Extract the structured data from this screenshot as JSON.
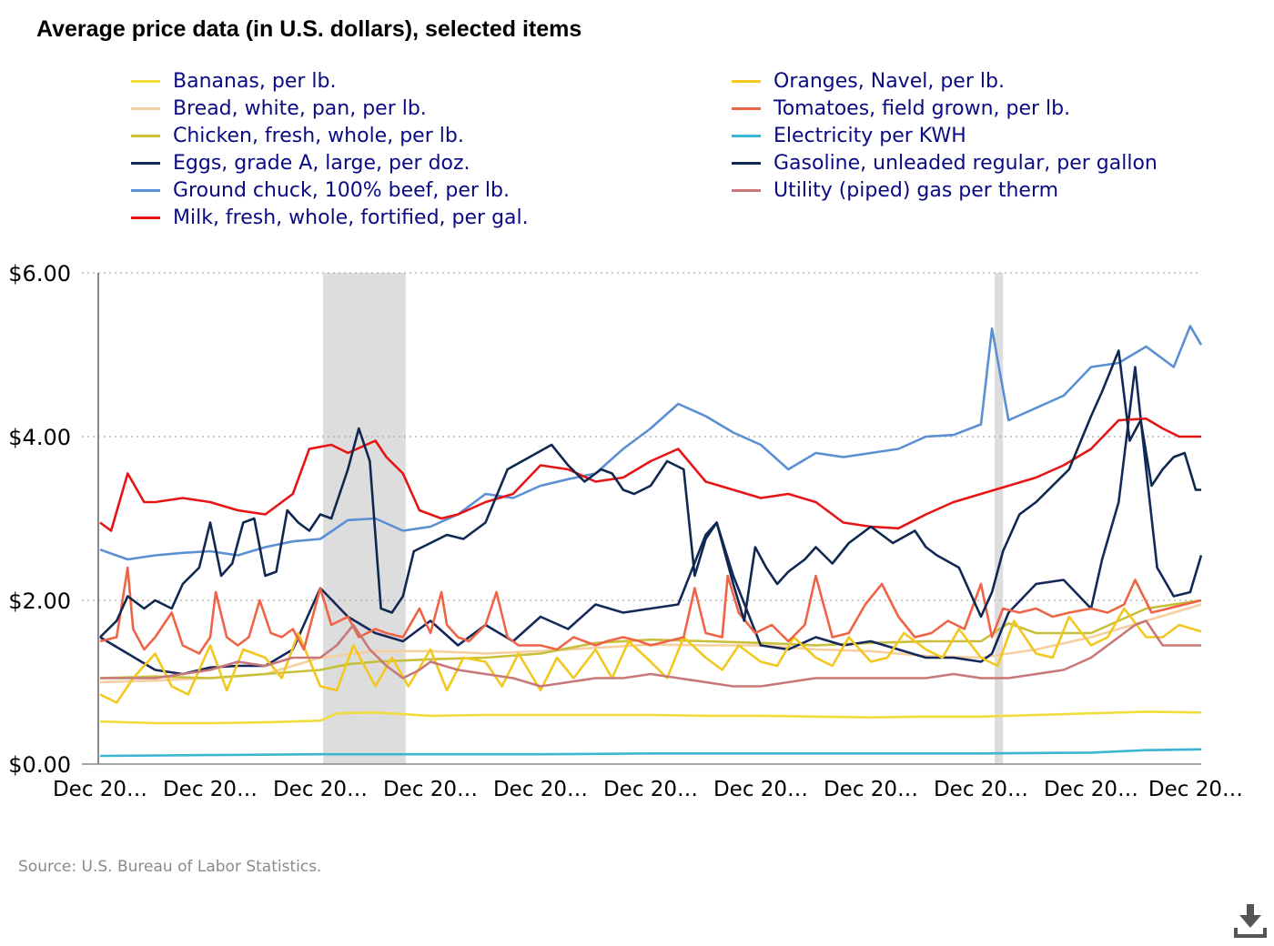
{
  "title": "Average price data (in U.S. dollars), selected items",
  "source": "Source: U.S. Bureau of Labor Statistics.",
  "download_icon": "download-icon",
  "chart_data": {
    "type": "line",
    "ylim": [
      0,
      6
    ],
    "yticks": [
      0,
      2,
      4,
      6
    ],
    "ytick_labels": [
      "$0.00",
      "$2.00",
      "$4.00",
      "$6.00"
    ],
    "xlim": [
      0,
      200
    ],
    "xticks": [
      0,
      20,
      40,
      60,
      80,
      100,
      120,
      140,
      160,
      180,
      200
    ],
    "xtick_labels": [
      "Dec 20…",
      "Dec 20…",
      "Dec 20…",
      "Dec 20…",
      "Dec 20…",
      "Dec 20…",
      "Dec 20…",
      "Dec 20…",
      "Dec 20…",
      "Dec 20…",
      "Dec 20…"
    ],
    "grid": "horizontal dotted",
    "recession_bands": [
      [
        40.5,
        55.5
      ],
      [
        162.5,
        164
      ]
    ],
    "legend_position": "top",
    "series": [
      {
        "name": "Bananas, per lb.",
        "color": "#f2dc3c",
        "x": [
          0,
          10,
          20,
          30,
          40,
          43,
          50,
          60,
          70,
          80,
          90,
          100,
          110,
          120,
          130,
          140,
          150,
          160,
          170,
          180,
          190,
          200
        ],
        "y": [
          0.52,
          0.5,
          0.5,
          0.51,
          0.53,
          0.62,
          0.63,
          0.59,
          0.6,
          0.6,
          0.6,
          0.6,
          0.59,
          0.59,
          0.58,
          0.57,
          0.58,
          0.58,
          0.6,
          0.62,
          0.64,
          0.63
        ]
      },
      {
        "name": "Bread, white, pan, per lb.",
        "color": "#f5cfa0",
        "x": [
          0,
          10,
          20,
          30,
          40,
          50,
          60,
          70,
          80,
          90,
          100,
          110,
          120,
          130,
          140,
          150,
          160,
          165,
          170,
          180,
          190,
          200
        ],
        "y": [
          1.0,
          1.02,
          1.05,
          1.1,
          1.3,
          1.38,
          1.38,
          1.35,
          1.38,
          1.42,
          1.46,
          1.45,
          1.45,
          1.4,
          1.38,
          1.32,
          1.3,
          1.35,
          1.4,
          1.55,
          1.75,
          1.95
        ]
      },
      {
        "name": "Chicken, fresh, whole, per lb.",
        "color": "#c8c03a",
        "x": [
          0,
          10,
          20,
          30,
          40,
          45,
          50,
          60,
          70,
          80,
          90,
          100,
          110,
          120,
          130,
          140,
          150,
          160,
          165,
          170,
          180,
          190,
          200
        ],
        "y": [
          1.05,
          1.07,
          1.05,
          1.1,
          1.15,
          1.22,
          1.25,
          1.28,
          1.3,
          1.35,
          1.48,
          1.52,
          1.5,
          1.48,
          1.45,
          1.48,
          1.5,
          1.5,
          1.72,
          1.6,
          1.6,
          1.9,
          2.0
        ]
      },
      {
        "name": "Eggs, grade A, large, per doz.",
        "color": "#14285a",
        "x": [
          0,
          5,
          10,
          15,
          20,
          25,
          30,
          35,
          40,
          45,
          50,
          55,
          60,
          65,
          70,
          75,
          80,
          85,
          90,
          95,
          100,
          105,
          110,
          112,
          115,
          120,
          125,
          130,
          135,
          140,
          145,
          150,
          155,
          160,
          162,
          165,
          170,
          175,
          180,
          182,
          185,
          188,
          190,
          192,
          195,
          198,
          200
        ],
        "y": [
          1.55,
          1.35,
          1.15,
          1.1,
          1.18,
          1.2,
          1.2,
          1.4,
          2.15,
          1.8,
          1.6,
          1.5,
          1.75,
          1.45,
          1.7,
          1.5,
          1.8,
          1.65,
          1.95,
          1.85,
          1.9,
          1.95,
          2.8,
          2.95,
          2.3,
          1.45,
          1.4,
          1.55,
          1.45,
          1.5,
          1.4,
          1.3,
          1.3,
          1.25,
          1.35,
          1.85,
          2.2,
          2.25,
          1.9,
          2.5,
          3.2,
          4.85,
          3.6,
          2.4,
          2.05,
          2.1,
          2.55
        ]
      },
      {
        "name": "Ground chuck, 100% beef, per lb.",
        "color": "#5b8fd4",
        "x": [
          0,
          5,
          10,
          15,
          20,
          25,
          30,
          35,
          40,
          45,
          50,
          55,
          60,
          65,
          70,
          75,
          80,
          85,
          90,
          95,
          100,
          105,
          110,
          115,
          120,
          125,
          130,
          135,
          140,
          145,
          150,
          155,
          160,
          162,
          165,
          170,
          175,
          180,
          185,
          190,
          195,
          198,
          200
        ],
        "y": [
          2.62,
          2.5,
          2.55,
          2.58,
          2.6,
          2.55,
          2.65,
          2.72,
          2.75,
          2.98,
          3.0,
          2.85,
          2.9,
          3.05,
          3.3,
          3.25,
          3.4,
          3.48,
          3.55,
          3.85,
          4.1,
          4.4,
          4.25,
          4.05,
          3.9,
          3.6,
          3.8,
          3.75,
          3.8,
          3.85,
          4.0,
          4.02,
          4.15,
          5.32,
          4.2,
          4.35,
          4.5,
          4.85,
          4.9,
          5.1,
          4.85,
          5.35,
          5.12
        ]
      },
      {
        "name": "Milk, fresh, whole, fortified, per gal.",
        "color": "#e61414",
        "x": [
          0,
          2,
          5,
          8,
          10,
          15,
          20,
          25,
          30,
          35,
          38,
          42,
          45,
          50,
          52,
          55,
          58,
          62,
          65,
          70,
          75,
          80,
          85,
          90,
          95,
          100,
          105,
          110,
          115,
          120,
          125,
          130,
          135,
          140,
          145,
          150,
          155,
          160,
          165,
          170,
          175,
          180,
          185,
          190,
          193,
          196,
          200
        ],
        "y": [
          2.95,
          2.85,
          3.55,
          3.2,
          3.2,
          3.25,
          3.2,
          3.1,
          3.05,
          3.3,
          3.85,
          3.9,
          3.8,
          3.95,
          3.75,
          3.55,
          3.1,
          3.0,
          3.05,
          3.2,
          3.3,
          3.65,
          3.6,
          3.45,
          3.5,
          3.7,
          3.85,
          3.45,
          3.35,
          3.25,
          3.3,
          3.2,
          2.95,
          2.9,
          2.88,
          3.05,
          3.2,
          3.3,
          3.4,
          3.5,
          3.65,
          3.85,
          4.2,
          4.22,
          4.1,
          4.0,
          4.0
        ]
      },
      {
        "name": "Oranges, Navel, per lb.",
        "color": "#f2c81e",
        "x": [
          0,
          3,
          6,
          10,
          13,
          16,
          20,
          23,
          26,
          30,
          33,
          36,
          40,
          43,
          46,
          50,
          53,
          56,
          60,
          63,
          66,
          70,
          73,
          76,
          80,
          83,
          86,
          90,
          93,
          96,
          100,
          103,
          106,
          110,
          113,
          116,
          120,
          123,
          126,
          130,
          133,
          136,
          140,
          143,
          146,
          150,
          153,
          156,
          160,
          163,
          166,
          170,
          173,
          176,
          180,
          183,
          186,
          190,
          193,
          196,
          200
        ],
        "y": [
          0.85,
          0.75,
          1.05,
          1.35,
          0.95,
          0.85,
          1.45,
          0.9,
          1.4,
          1.3,
          1.05,
          1.6,
          0.95,
          0.9,
          1.45,
          0.95,
          1.3,
          0.95,
          1.4,
          0.9,
          1.3,
          1.25,
          0.95,
          1.35,
          0.9,
          1.3,
          1.05,
          1.4,
          1.05,
          1.5,
          1.25,
          1.05,
          1.55,
          1.3,
          1.15,
          1.45,
          1.25,
          1.2,
          1.55,
          1.3,
          1.2,
          1.55,
          1.25,
          1.3,
          1.6,
          1.4,
          1.3,
          1.65,
          1.3,
          1.2,
          1.75,
          1.35,
          1.3,
          1.8,
          1.45,
          1.55,
          1.9,
          1.55,
          1.55,
          1.7,
          1.62
        ]
      },
      {
        "name": "Tomatoes, field grown, per lb.",
        "color": "#ef6446",
        "x": [
          0,
          3,
          5,
          6,
          8,
          10,
          13,
          15,
          18,
          20,
          21,
          23,
          25,
          27,
          29,
          31,
          33,
          35,
          37,
          40,
          42,
          45,
          47,
          50,
          52,
          55,
          58,
          60,
          62,
          63,
          65,
          67,
          70,
          72,
          74,
          76,
          80,
          83,
          86,
          88,
          90,
          92,
          95,
          98,
          100,
          103,
          106,
          108,
          110,
          113,
          114,
          116,
          119,
          122,
          125,
          128,
          130,
          133,
          136,
          139,
          142,
          145,
          148,
          151,
          154,
          157,
          160,
          162,
          164,
          167,
          170,
          173,
          176,
          180,
          183,
          186,
          188,
          191,
          194,
          197,
          200
        ],
        "y": [
          1.5,
          1.55,
          2.4,
          1.65,
          1.4,
          1.55,
          1.85,
          1.45,
          1.35,
          1.55,
          2.1,
          1.55,
          1.45,
          1.55,
          2.0,
          1.6,
          1.55,
          1.65,
          1.4,
          2.15,
          1.7,
          1.8,
          1.55,
          1.65,
          1.6,
          1.55,
          1.9,
          1.6,
          2.1,
          1.7,
          1.55,
          1.5,
          1.7,
          2.1,
          1.55,
          1.45,
          1.45,
          1.4,
          1.55,
          1.5,
          1.45,
          1.5,
          1.55,
          1.5,
          1.45,
          1.5,
          1.55,
          2.15,
          1.6,
          1.55,
          2.3,
          1.85,
          1.6,
          1.7,
          1.5,
          1.7,
          2.3,
          1.55,
          1.6,
          1.95,
          2.2,
          1.8,
          1.55,
          1.6,
          1.75,
          1.65,
          2.2,
          1.55,
          1.9,
          1.85,
          1.9,
          1.8,
          1.85,
          1.9,
          1.85,
          1.95,
          2.25,
          1.85,
          1.9,
          1.95,
          2.0
        ]
      },
      {
        "name": "Electricity per KWH",
        "color": "#3cb4d2",
        "x": [
          0,
          20,
          40,
          60,
          80,
          100,
          120,
          140,
          160,
          180,
          190,
          200
        ],
        "y": [
          0.1,
          0.11,
          0.12,
          0.12,
          0.12,
          0.13,
          0.13,
          0.13,
          0.13,
          0.14,
          0.17,
          0.18
        ]
      },
      {
        "name": "Gasoline, unleaded regular, per gallon",
        "color": "#0f2850",
        "x": [
          0,
          3,
          5,
          8,
          10,
          13,
          15,
          18,
          20,
          22,
          24,
          26,
          28,
          30,
          32,
          34,
          36,
          38,
          40,
          42,
          45,
          47,
          49,
          51,
          53,
          55,
          57,
          60,
          63,
          66,
          70,
          74,
          78,
          82,
          85,
          88,
          91,
          93,
          95,
          97,
          100,
          103,
          106,
          108,
          110,
          112,
          115,
          117,
          119,
          121,
          123,
          125,
          128,
          130,
          133,
          136,
          140,
          144,
          148,
          150,
          152,
          156,
          160,
          162,
          164,
          167,
          170,
          173,
          176,
          180,
          182,
          185,
          187,
          189,
          191,
          193,
          195,
          197,
          199,
          200
        ],
        "y": [
          1.55,
          1.75,
          2.05,
          1.9,
          2.0,
          1.9,
          2.2,
          2.4,
          2.95,
          2.3,
          2.45,
          2.95,
          3.0,
          2.3,
          2.35,
          3.1,
          2.95,
          2.85,
          3.05,
          3.0,
          3.6,
          4.1,
          3.7,
          1.9,
          1.85,
          2.05,
          2.6,
          2.7,
          2.8,
          2.75,
          2.95,
          3.6,
          3.75,
          3.9,
          3.65,
          3.45,
          3.6,
          3.55,
          3.35,
          3.3,
          3.4,
          3.7,
          3.6,
          2.3,
          2.75,
          2.95,
          2.2,
          1.75,
          2.65,
          2.4,
          2.2,
          2.35,
          2.5,
          2.65,
          2.45,
          2.7,
          2.9,
          2.7,
          2.85,
          2.65,
          2.55,
          2.4,
          1.8,
          2.1,
          2.6,
          3.05,
          3.2,
          3.4,
          3.6,
          4.25,
          4.55,
          5.05,
          3.95,
          4.2,
          3.4,
          3.6,
          3.75,
          3.8,
          3.35,
          3.35
        ]
      },
      {
        "name": "Utility (piped) gas per therm",
        "color": "#c87878",
        "x": [
          0,
          5,
          10,
          15,
          20,
          25,
          30,
          35,
          40,
          43,
          46,
          49,
          52,
          55,
          58,
          60,
          65,
          70,
          75,
          80,
          85,
          90,
          95,
          100,
          105,
          110,
          115,
          120,
          125,
          130,
          135,
          140,
          145,
          150,
          155,
          160,
          165,
          170,
          175,
          180,
          185,
          188,
          190,
          193,
          196,
          200
        ],
        "y": [
          1.05,
          1.05,
          1.05,
          1.1,
          1.15,
          1.25,
          1.2,
          1.3,
          1.3,
          1.45,
          1.7,
          1.4,
          1.2,
          1.05,
          1.15,
          1.25,
          1.15,
          1.1,
          1.05,
          0.95,
          1.0,
          1.05,
          1.05,
          1.1,
          1.05,
          1.0,
          0.95,
          0.95,
          1.0,
          1.05,
          1.05,
          1.05,
          1.05,
          1.05,
          1.1,
          1.05,
          1.05,
          1.1,
          1.15,
          1.3,
          1.55,
          1.7,
          1.75,
          1.45,
          1.45,
          1.45
        ]
      }
    ]
  }
}
